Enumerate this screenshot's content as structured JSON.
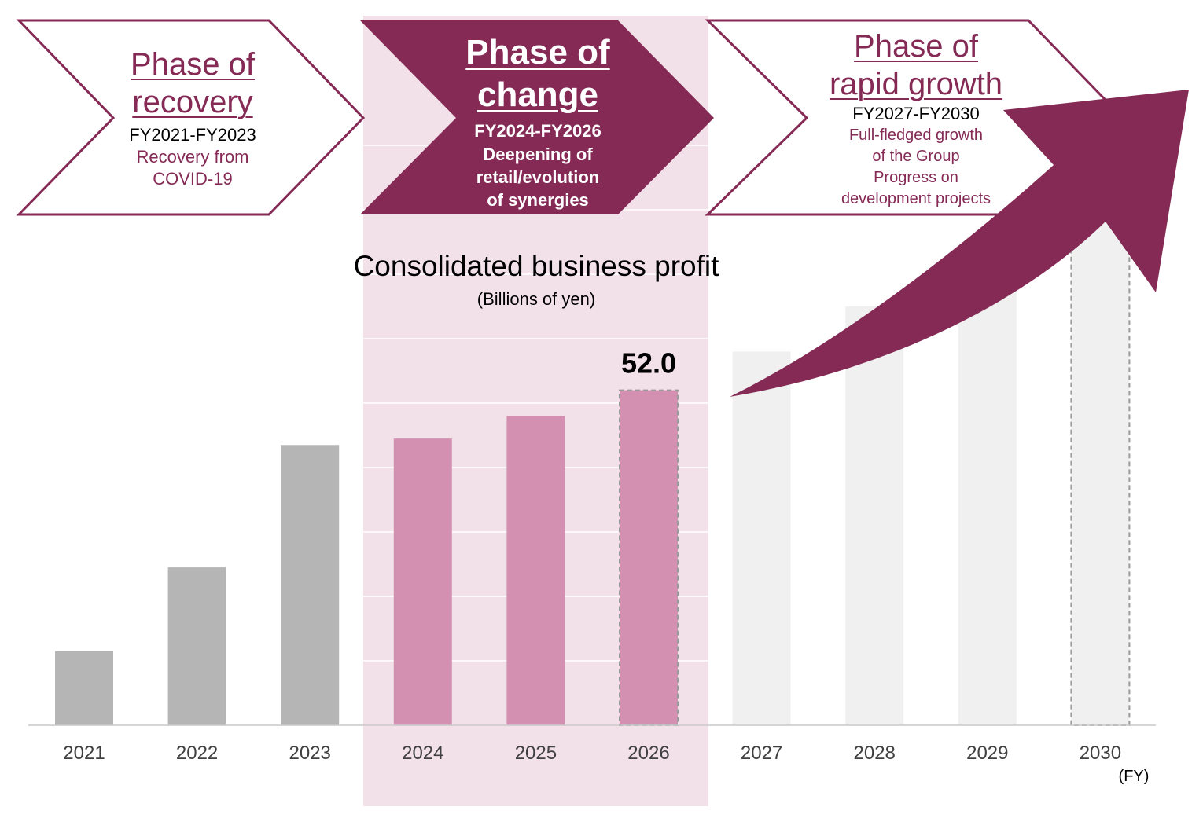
{
  "phases": [
    {
      "title_line1": "Phase of",
      "title_line2": "recovery",
      "period": "FY2021-FY2023",
      "description": [
        "Recovery from",
        "COVID-19"
      ]
    },
    {
      "title_line1": "Phase of",
      "title_line2": "change",
      "period": "FY2024-FY2026",
      "description": [
        "Deepening of",
        "retail/evolution",
        "of synergies"
      ]
    },
    {
      "title_line1": "Phase of",
      "title_line2": "rapid growth",
      "period": "FY2027-FY2030",
      "description": [
        "Full-fledged growth",
        "of the Group",
        "Progress on",
        "development projects"
      ]
    }
  ],
  "colors": {
    "brand": "#842a55",
    "phase_band": "#f3e1e9",
    "past_bar": "#b5b5b5",
    "change_bar": "#d490b1",
    "future_bar": "#f0f0f0",
    "axis": "#c9c9c9"
  },
  "chart_data": {
    "type": "bar",
    "title": "Consolidated business profit",
    "unit": "(Billions of yen)",
    "x_unit": "(FY)",
    "categories": [
      "2021",
      "2022",
      "2023",
      "2024",
      "2025",
      "2026",
      "2027",
      "2028",
      "2029",
      "2030"
    ],
    "values": [
      11.5,
      24.5,
      43.5,
      44.5,
      48.0,
      52.0,
      58.0,
      65.0,
      72.0,
      88.0
    ],
    "category_style": [
      "past",
      "past",
      "past",
      "change",
      "change",
      "change",
      "future",
      "future",
      "future",
      "future"
    ],
    "dashed_outline": [
      "2026",
      "2030"
    ],
    "data_labels": [
      {
        "category": "2026",
        "text": "52.0"
      }
    ],
    "ylim": [
      0,
      100
    ],
    "grid": false,
    "legend": "none",
    "annotation": "rising growth arrow over FY2026-FY2030"
  }
}
